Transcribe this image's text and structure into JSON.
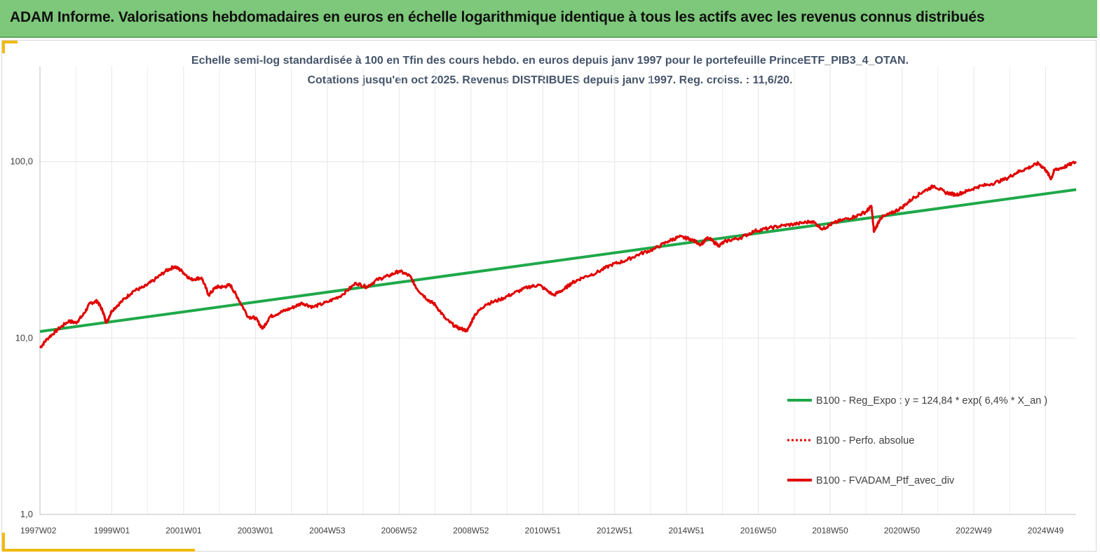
{
  "banner": {
    "title": "ADAM Informe. Valorisations hebdomadaires en euros en échelle logarithmique identique à tous les actifs avec les revenus connus distribués"
  },
  "colors": {
    "banner": "#7dc87a",
    "accent": "#f2b90f",
    "regression": "#1fa84a",
    "portfolio": "#e00000"
  },
  "chart_data": {
    "type": "line",
    "title_lines": [
      "Echelle semi-log standardisée  à 100 en Tfin des cours hebdo.  en euros depuis janv 1997 pour le portefeuille PrinceETF_PIB3_4_OTAN.",
      "Cotations  jusqu'en oct 2025. Revenus DISTRIBUES depuis janv 1997. Reg. croiss.  : 11,6/20."
    ],
    "y_scale": "log",
    "ylim": [
      1,
      200
    ],
    "y_ticks": [
      "1,0",
      "10,0",
      "100,0"
    ],
    "y_tick_values": [
      1,
      10,
      100
    ],
    "x_ticks": [
      "1997W02",
      "1999W01",
      "2001W01",
      "2003W01",
      "2004W53",
      "2006W52",
      "2008W52",
      "2010W51",
      "2012W51",
      "2014W51",
      "2016W50",
      "2018W50",
      "2020W50",
      "2022W49",
      "2024W49"
    ],
    "x_tick_years": [
      1997.0,
      1999.0,
      2001.0,
      2003.0,
      2005.0,
      2007.0,
      2009.0,
      2011.0,
      2013.0,
      2015.0,
      2017.0,
      2019.0,
      2021.0,
      2023.0,
      2025.0
    ],
    "xlim": [
      1997.0,
      2025.85
    ],
    "grid": "vertical",
    "legend_position": "right",
    "series": [
      {
        "name": "B100 - Reg_Expo : y = 124,84 * exp( 6,4% *  X_an )",
        "style": "solid",
        "color": "#1fa84a",
        "x": [
          1997.0,
          2025.85
        ],
        "y": [
          10.9,
          69.5
        ]
      },
      {
        "name": "B100 - Perfo. absolue",
        "style": "dotted",
        "color": "#e00000",
        "x": [],
        "y": []
      },
      {
        "name": "B100 - FVADAM_Ptf_avec_div",
        "style": "solid",
        "color": "#e00000",
        "x": [
          1997.0,
          1997.2,
          1997.5,
          1997.8,
          1998.0,
          1998.2,
          1998.4,
          1998.6,
          1998.75,
          1998.85,
          1999.0,
          1999.3,
          1999.6,
          1999.9,
          2000.2,
          2000.5,
          2000.75,
          2000.95,
          2001.2,
          2001.5,
          2001.7,
          2001.9,
          2002.1,
          2002.3,
          2002.5,
          2002.8,
          2003.0,
          2003.2,
          2003.4,
          2003.7,
          2004.0,
          2004.3,
          2004.6,
          2005.0,
          2005.4,
          2005.8,
          2006.1,
          2006.4,
          2006.7,
          2007.0,
          2007.3,
          2007.5,
          2007.8,
          2008.0,
          2008.3,
          2008.6,
          2008.9,
          2009.1,
          2009.4,
          2009.8,
          2010.2,
          2010.6,
          2010.9,
          2011.3,
          2011.6,
          2011.8,
          2012.1,
          2012.5,
          2012.9,
          2013.3,
          2013.7,
          2014.1,
          2014.5,
          2014.8,
          2015.1,
          2015.4,
          2015.6,
          2015.9,
          2016.1,
          2016.5,
          2016.9,
          2017.3,
          2017.7,
          2018.1,
          2018.5,
          2018.8,
          2019.0,
          2019.3,
          2019.7,
          2020.0,
          2020.15,
          2020.22,
          2020.4,
          2020.7,
          2021.0,
          2021.3,
          2021.6,
          2021.9,
          2022.2,
          2022.5,
          2022.8,
          2023.1,
          2023.5,
          2023.9,
          2024.2,
          2024.5,
          2024.8,
          2025.0,
          2025.15,
          2025.25,
          2025.5,
          2025.85
        ],
        "y": [
          8.8,
          9.9,
          11.2,
          12.5,
          12.2,
          13.5,
          15.8,
          16.2,
          14.2,
          12.2,
          14.3,
          16.3,
          18.5,
          19.5,
          21.5,
          24.0,
          25.5,
          24.0,
          21.5,
          22.0,
          17.5,
          19.5,
          19.5,
          20.0,
          17.0,
          13.2,
          13.0,
          11.3,
          13.2,
          14.0,
          14.8,
          15.8,
          15.0,
          16.0,
          17.5,
          20.5,
          19.5,
          21.5,
          22.5,
          24.0,
          22.5,
          19.0,
          16.5,
          15.5,
          12.8,
          11.5,
          11.0,
          13.5,
          15.5,
          16.5,
          18.0,
          19.5,
          20.0,
          17.5,
          19.0,
          20.5,
          22.0,
          23.5,
          26.0,
          27.5,
          30.0,
          32.0,
          35.5,
          37.5,
          36.5,
          34.0,
          37.0,
          33.5,
          35.5,
          37.0,
          40.5,
          42.0,
          43.5,
          44.5,
          46.0,
          41.5,
          44.0,
          46.5,
          49.0,
          52.0,
          56.0,
          40.0,
          48.0,
          51.0,
          55.0,
          62.0,
          68.0,
          73.0,
          67.0,
          65.0,
          68.0,
          72.0,
          75.0,
          80.0,
          87.0,
          92.0,
          98.0,
          90.0,
          80.0,
          90.0,
          93.0,
          100.0
        ]
      }
    ]
  }
}
